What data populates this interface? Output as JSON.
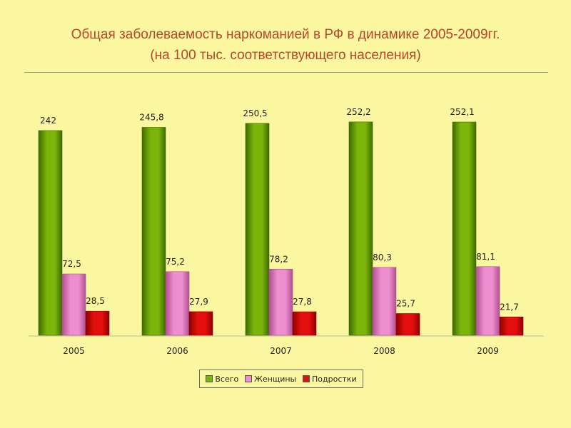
{
  "header": {
    "title_line1": "Общая заболеваемость наркоманией в РФ в динамике 2005-2009гг.",
    "title_line2": "(на 100 тыс. соответствующего населения)"
  },
  "colors": {
    "background": "#fbf7a0",
    "title": "#b8462c",
    "series": [
      "#7cb40a",
      "#ee8ed0",
      "#e30f0f"
    ],
    "series_dark": [
      "#3e6a00",
      "#b0508f",
      "#8e0000"
    ]
  },
  "chart_data": {
    "type": "bar",
    "title": "",
    "xlabel": "",
    "ylabel": "",
    "grid": false,
    "legend": "bottom",
    "ylim": [
      0,
      260
    ],
    "categories": [
      "2005",
      "2006",
      "2007",
      "2008",
      "2009"
    ],
    "series": [
      {
        "name": "Всего",
        "values": [
          242,
          245.8,
          250.5,
          252.2,
          252.1
        ],
        "labels": [
          "242",
          "245,8",
          "250,5",
          "252,2",
          "252,1"
        ]
      },
      {
        "name": "Женщины",
        "values": [
          72.5,
          75.2,
          78.2,
          80.3,
          81.1
        ],
        "labels": [
          "72,5",
          "75,2",
          "78,2",
          "80,3",
          "81,1"
        ]
      },
      {
        "name": "Подростки",
        "values": [
          28.5,
          27.9,
          27.8,
          25.7,
          21.7
        ],
        "labels": [
          "28,5",
          "27,9",
          "27,8",
          "25,7",
          "21,7"
        ]
      }
    ]
  }
}
